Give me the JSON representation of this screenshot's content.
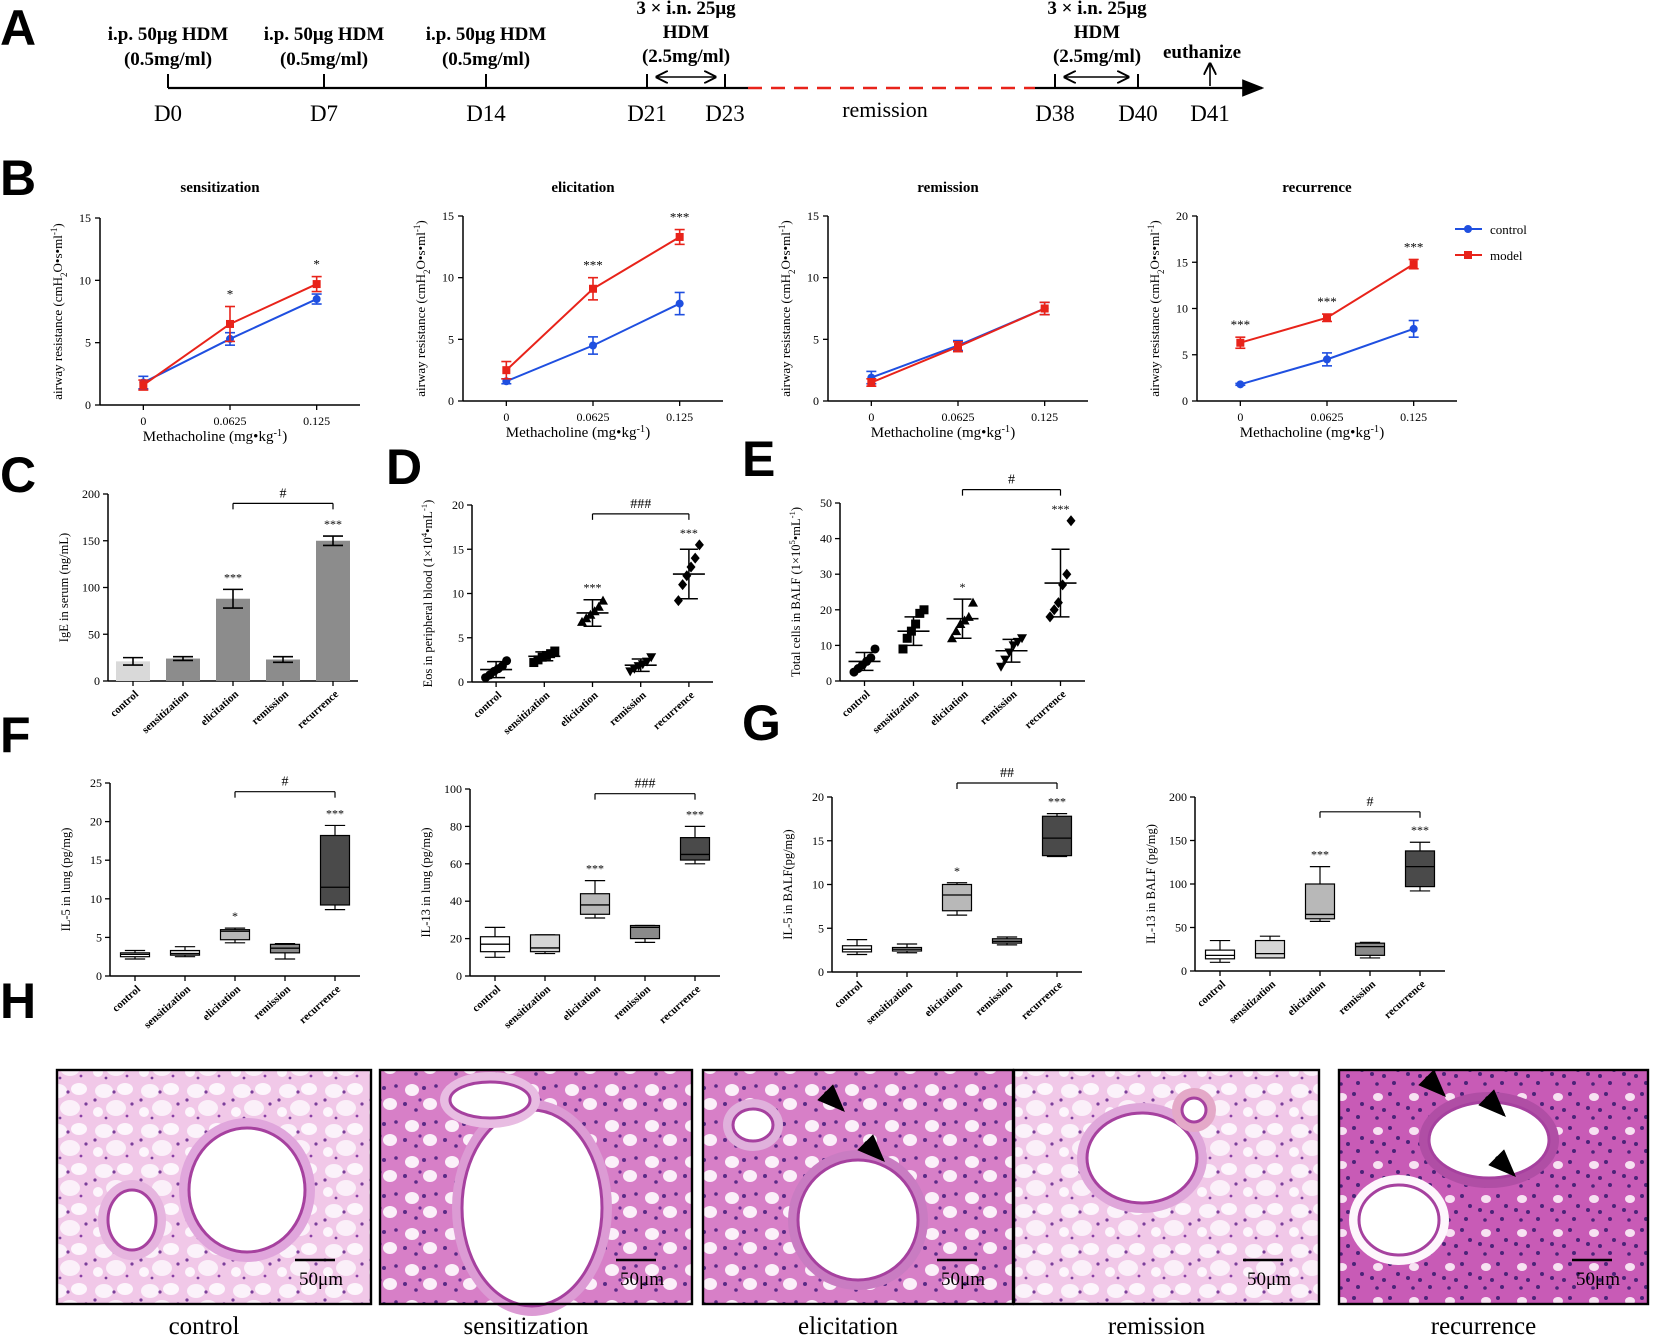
{
  "panel_letters": [
    "A",
    "B",
    "C",
    "D",
    "E",
    "F",
    "G",
    "H"
  ],
  "colors": {
    "control": "#1f4fe0",
    "model": "#e8231a",
    "black": "#000000",
    "remission_dash": "#e8231a"
  },
  "timeline": {
    "events": [
      {
        "day": "D0",
        "l1": "i.p. 50μg HDM",
        "l2": "(0.5mg/ml)"
      },
      {
        "day": "D7",
        "l1": "i.p. 50μg HDM",
        "l2": "(0.5mg/ml)"
      },
      {
        "day": "D14",
        "l1": "i.p. 50μg HDM",
        "l2": "(0.5mg/ml)"
      },
      {
        "day": "D21",
        "l1": "3 × i.n. 25μg",
        "l2": "HDM",
        "l3": "(2.5mg/ml)"
      },
      {
        "day": "D23"
      },
      {
        "day": "D38",
        "l1": "3 × i.n. 25μg",
        "l2": "HDM",
        "l3": "(2.5mg/ml)"
      },
      {
        "day": "D40"
      },
      {
        "day": "D41",
        "l1": "euthanize"
      }
    ],
    "remission_label": "remission"
  },
  "chart_data": [
    {
      "id": "B1",
      "type": "line",
      "title": "sensitization",
      "xlabel": "Methacholine (mg•kg-1)",
      "ylabel": "airway resistance (cmH2O•s•ml-1)",
      "categories": [
        "0",
        "0.0625",
        "0.125"
      ],
      "ylim": [
        0,
        15
      ],
      "yticks": [
        0,
        5,
        10,
        15
      ],
      "series": [
        {
          "name": "control",
          "values": [
            1.8,
            5.3,
            8.5
          ],
          "err": [
            0.5,
            0.5,
            0.4
          ]
        },
        {
          "name": "model",
          "values": [
            1.6,
            6.5,
            9.7
          ],
          "err": [
            0.4,
            1.4,
            0.6
          ]
        }
      ],
      "significance": [
        "",
        "*",
        "*"
      ]
    },
    {
      "id": "B2",
      "type": "line",
      "title": "elicitation",
      "xlabel": "Methacholine (mg•kg-1)",
      "ylabel": "airway resistance (cmH2O•s•ml-1)",
      "categories": [
        "0",
        "0.0625",
        "0.125"
      ],
      "ylim": [
        0,
        15
      ],
      "yticks": [
        0,
        5,
        10,
        15
      ],
      "series": [
        {
          "name": "control",
          "values": [
            1.6,
            4.5,
            7.9
          ],
          "err": [
            0.2,
            0.7,
            0.9
          ]
        },
        {
          "name": "model",
          "values": [
            2.5,
            9.1,
            13.3
          ],
          "err": [
            0.7,
            0.9,
            0.6
          ]
        }
      ],
      "significance": [
        "",
        "***",
        "***"
      ]
    },
    {
      "id": "B3",
      "type": "line",
      "title": "remission",
      "xlabel": "Methacholine (mg•kg-1)",
      "ylabel": "airway resistance (cmH2O•s•ml-1)",
      "categories": [
        "0",
        "0.0625",
        "0.125"
      ],
      "ylim": [
        0,
        15
      ],
      "yticks": [
        0,
        5,
        10,
        15
      ],
      "series": [
        {
          "name": "control",
          "values": [
            1.9,
            4.5,
            7.5
          ],
          "err": [
            0.5,
            0.4,
            0.5
          ]
        },
        {
          "name": "model",
          "values": [
            1.5,
            4.4,
            7.5
          ],
          "err": [
            0.3,
            0.4,
            0.5
          ]
        }
      ],
      "significance": [
        "",
        "",
        ""
      ]
    },
    {
      "id": "B4",
      "type": "line",
      "title": "recurrence",
      "xlabel": "Methacholine (mg•kg-1)",
      "ylabel": "airway resistance (cmH2O•s•ml-1)",
      "categories": [
        "0",
        "0.0625",
        "0.125"
      ],
      "ylim": [
        0,
        20
      ],
      "yticks": [
        0,
        5,
        10,
        15,
        20
      ],
      "series": [
        {
          "name": "control",
          "values": [
            1.8,
            4.5,
            7.8
          ],
          "err": [
            0.1,
            0.7,
            0.9
          ]
        },
        {
          "name": "model",
          "values": [
            6.3,
            9.0,
            14.8
          ],
          "err": [
            0.6,
            0.4,
            0.5
          ]
        }
      ],
      "significance": [
        "***",
        "***",
        "***"
      ],
      "legend": [
        "control",
        "model"
      ]
    },
    {
      "id": "C",
      "type": "bar",
      "title": "",
      "ylabel": "IgE in serum (ng/mL)",
      "categories": [
        "control",
        "sensitization",
        "elicitation",
        "remission",
        "recurrence"
      ],
      "values": [
        21,
        24,
        88,
        23,
        150
      ],
      "err": [
        4,
        2,
        10,
        3,
        5
      ],
      "ylim": [
        0,
        200
      ],
      "yticks": [
        0,
        50,
        100,
        150,
        200
      ],
      "significance": [
        "",
        "",
        "***",
        "",
        "***"
      ],
      "bracket": {
        "from": 2,
        "to": 4,
        "label": "#"
      }
    },
    {
      "id": "D",
      "type": "scatter",
      "title": "",
      "ylabel": "Eos in peripheral blood (1×104•mL-1)",
      "categories": [
        "control",
        "sensitization",
        "elicitation",
        "remission",
        "recurrence"
      ],
      "points": [
        [
          0.5,
          0.8,
          1.2,
          1.5,
          1.8,
          2.4
        ],
        [
          2.2,
          2.5,
          2.8,
          3.0,
          3.2,
          3.5
        ],
        [
          6.8,
          7.2,
          7.6,
          8.0,
          8.5,
          9.2
        ],
        [
          1.2,
          1.5,
          1.8,
          2.0,
          2.3,
          2.8
        ],
        [
          9.2,
          11.0,
          12.0,
          13.0,
          14.0,
          15.5
        ]
      ],
      "mean": [
        1.4,
        2.9,
        7.8,
        1.9,
        12.2
      ],
      "sd": [
        0.9,
        0.5,
        1.5,
        0.7,
        2.8
      ],
      "ylim": [
        0,
        20
      ],
      "yticks": [
        0,
        5,
        10,
        15,
        20
      ],
      "significance": [
        "",
        "",
        "***",
        "",
        "***"
      ],
      "bracket": {
        "from": 2,
        "to": 4,
        "label": "###"
      }
    },
    {
      "id": "E",
      "type": "scatter",
      "title": "",
      "ylabel": "Total cells in BALF (1×105•mL-1)",
      "categories": [
        "control",
        "sensitization",
        "elicitation",
        "remission",
        "recurrence"
      ],
      "points": [
        [
          2.5,
          3.5,
          4.5,
          5.5,
          6.5,
          9
        ],
        [
          9,
          12,
          14,
          16,
          19,
          20
        ],
        [
          12,
          14,
          16,
          17,
          18,
          22
        ],
        [
          4,
          6,
          8,
          10,
          11,
          12
        ],
        [
          18,
          20,
          22,
          27,
          30,
          45
        ]
      ],
      "mean": [
        5.5,
        14,
        17.5,
        8.5,
        27.5
      ],
      "sd": [
        2.5,
        4,
        5.5,
        3.2,
        9.5
      ],
      "ylim": [
        0,
        50
      ],
      "yticks": [
        0,
        10,
        20,
        30,
        40,
        50
      ],
      "significance": [
        "",
        "",
        "*",
        "",
        "***"
      ],
      "bracket": {
        "from": 2,
        "to": 4,
        "label": "#"
      }
    },
    {
      "id": "F1",
      "type": "box",
      "title": "",
      "ylabel": "IL-5 in lung (pg/mg)",
      "categories": [
        "control",
        "sensitization",
        "elicitation",
        "remission",
        "recurrence"
      ],
      "boxes": [
        [
          2.2,
          2.5,
          2.8,
          3.0,
          3.3
        ],
        [
          2.5,
          2.7,
          2.9,
          3.3,
          3.8
        ],
        [
          4.3,
          4.7,
          5.8,
          6.0,
          6.2
        ],
        [
          2.2,
          3.0,
          3.6,
          4.1,
          4.2
        ],
        [
          8.6,
          9.2,
          11.5,
          18.2,
          19.5
        ]
      ],
      "shades": [
        "#ffffff",
        "#d6d6d6",
        "#b8b8b8",
        "#8a8a8a",
        "#4a4a4a"
      ],
      "ylim": [
        0,
        25
      ],
      "yticks": [
        0,
        5,
        10,
        15,
        20,
        25
      ],
      "significance": [
        "",
        "",
        "*",
        "",
        "***"
      ],
      "bracket": {
        "from": 2,
        "to": 4,
        "label": "#"
      }
    },
    {
      "id": "F2",
      "type": "box",
      "title": "",
      "ylabel": "IL-13 in lung (pg/mg)",
      "categories": [
        "control",
        "sensitization",
        "elicitation",
        "remission",
        "recurrence"
      ],
      "boxes": [
        [
          10,
          13,
          17,
          21,
          26
        ],
        [
          12,
          13,
          15,
          22,
          22
        ],
        [
          31,
          33,
          38,
          44,
          51
        ],
        [
          18,
          20,
          26,
          27,
          27
        ],
        [
          60,
          62,
          65,
          74,
          80
        ]
      ],
      "shades": [
        "#ffffff",
        "#d6d6d6",
        "#b8b8b8",
        "#8a8a8a",
        "#4a4a4a"
      ],
      "ylim": [
        0,
        100
      ],
      "yticks": [
        0,
        20,
        40,
        60,
        80,
        100
      ],
      "significance": [
        "",
        "",
        "***",
        "",
        "***"
      ],
      "bracket": {
        "from": 2,
        "to": 4,
        "label": "###"
      }
    },
    {
      "id": "G1",
      "type": "box",
      "title": "",
      "ylabel": "IL-5 in BALF(pg/mg)",
      "categories": [
        "control",
        "sensitization",
        "elicitation",
        "remission",
        "recurrence"
      ],
      "boxes": [
        [
          2.0,
          2.3,
          2.6,
          3.0,
          3.7
        ],
        [
          2.2,
          2.4,
          2.6,
          2.8,
          3.2
        ],
        [
          6.5,
          7.0,
          8.8,
          10.0,
          10.2
        ],
        [
          3.1,
          3.3,
          3.5,
          3.8,
          4.0
        ],
        [
          13.2,
          13.3,
          15.3,
          17.8,
          18.1
        ]
      ],
      "shades": [
        "#ffffff",
        "#d6d6d6",
        "#b8b8b8",
        "#8a8a8a",
        "#4a4a4a"
      ],
      "ylim": [
        0,
        20
      ],
      "yticks": [
        0,
        5,
        10,
        15,
        20
      ],
      "significance": [
        "",
        "",
        "*",
        "",
        "***"
      ],
      "bracket": {
        "from": 2,
        "to": 4,
        "label": "##"
      }
    },
    {
      "id": "G2",
      "type": "box",
      "title": "",
      "ylabel": "IL-13 in BALF (pg/mg)",
      "categories": [
        "control",
        "sensitization",
        "elicitation",
        "remission",
        "recurrence"
      ],
      "boxes": [
        [
          10,
          14,
          18,
          24,
          35
        ],
        [
          15,
          15,
          20,
          35,
          40
        ],
        [
          57,
          60,
          65,
          100,
          120
        ],
        [
          15,
          18,
          28,
          32,
          33
        ],
        [
          92,
          97,
          120,
          138,
          148
        ]
      ],
      "shades": [
        "#ffffff",
        "#d6d6d6",
        "#b8b8b8",
        "#8a8a8a",
        "#4a4a4a"
      ],
      "ylim": [
        0,
        200
      ],
      "yticks": [
        0,
        50,
        100,
        150,
        200
      ],
      "significance": [
        "",
        "",
        "***",
        "",
        "***"
      ],
      "bracket": {
        "from": 2,
        "to": 4,
        "label": "#"
      }
    }
  ],
  "histology": {
    "labels": [
      "control",
      "sensitization",
      "elicitation",
      "remission",
      "recurrence"
    ],
    "scale_bar": "50μm",
    "arrows": [
      0,
      0,
      2,
      0,
      3
    ]
  }
}
